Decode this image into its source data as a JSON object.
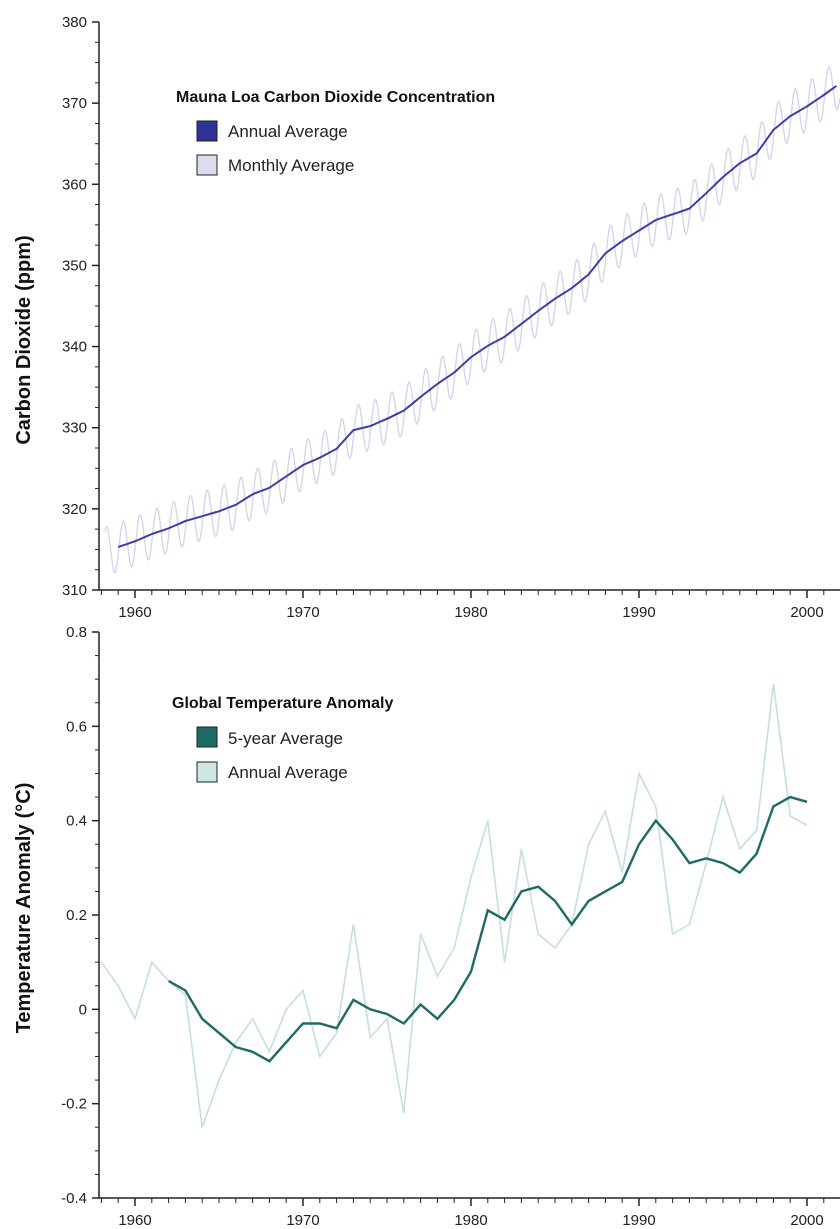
{
  "chart_data": [
    {
      "type": "line",
      "title": "Mauna Loa Carbon Dioxide Concentration",
      "ylabel": "Carbon Dioxide",
      "yunit": "(ppm)",
      "xlim": [
        1958,
        2002
      ],
      "ylim": [
        310,
        380
      ],
      "yticks": [
        "310",
        "320",
        "330",
        "340",
        "350",
        "360",
        "370",
        "380"
      ],
      "xticks": [
        "1960",
        "1970",
        "1980",
        "1990",
        "2000"
      ],
      "grid": false,
      "legend_position": "top-left",
      "colors": {
        "Annual Average": "#3d3fa8",
        "Monthly Average": "#d4d5ee"
      },
      "series": [
        {
          "name": "Annual Average",
          "x": [
            1959,
            1960,
            1961,
            1962,
            1963,
            1964,
            1965,
            1966,
            1967,
            1968,
            1969,
            1970,
            1971,
            1972,
            1973,
            1974,
            1975,
            1976,
            1977,
            1978,
            1979,
            1980,
            1981,
            1982,
            1983,
            1984,
            1985,
            1986,
            1987,
            1988,
            1989,
            1990,
            1991,
            1992,
            1993,
            1994,
            1995,
            1996,
            1997,
            1998,
            1999,
            2000,
            2001,
            2002
          ],
          "values": [
            315.3,
            316.0,
            316.9,
            317.6,
            318.5,
            319.1,
            319.7,
            320.5,
            321.8,
            322.6,
            324.0,
            325.4,
            326.3,
            327.4,
            329.7,
            330.2,
            331.1,
            332.1,
            333.8,
            335.4,
            336.8,
            338.7,
            340.1,
            341.2,
            342.8,
            344.4,
            345.9,
            347.2,
            348.9,
            351.5,
            353.0,
            354.3,
            355.6,
            356.3,
            357.0,
            358.9,
            360.9,
            362.6,
            363.8,
            366.7,
            368.4,
            369.6,
            371.0,
            372.5
          ]
        },
        {
          "name": "Monthly Average",
          "seasonal_amplitude_ppm": 3.0,
          "note_values": "monthly values oscillate around the annual average"
        }
      ]
    },
    {
      "type": "line",
      "title": "Global Temperature Anomaly",
      "ylabel": "Temperature Anomaly",
      "yunit": "(°C)",
      "xlim": [
        1958,
        2002
      ],
      "ylim": [
        -0.4,
        0.8
      ],
      "yticks": [
        "-0.4",
        "-0.2",
        "0",
        "0.2",
        "0.4",
        "0.6",
        "0.8"
      ],
      "xticks": [
        "1960",
        "1970",
        "1980",
        "1990",
        "2000"
      ],
      "grid": false,
      "legend_position": "top-left",
      "colors": {
        "5-year Average": "#1e6b66",
        "Annual Average": "#c3e0de"
      },
      "series": [
        {
          "name": "5-year Average",
          "x": [
            1962,
            1963,
            1964,
            1965,
            1966,
            1967,
            1968,
            1969,
            1970,
            1971,
            1972,
            1973,
            1974,
            1975,
            1976,
            1977,
            1978,
            1979,
            1980,
            1981,
            1982,
            1983,
            1984,
            1985,
            1986,
            1987,
            1988,
            1989,
            1990,
            1991,
            1992,
            1993,
            1994,
            1995,
            1996,
            1997,
            1998,
            1999,
            2000
          ],
          "values": [
            0.06,
            0.04,
            -0.02,
            -0.05,
            -0.08,
            -0.09,
            -0.11,
            -0.07,
            -0.03,
            -0.03,
            -0.04,
            0.02,
            0.0,
            -0.01,
            -0.03,
            0.01,
            -0.02,
            0.02,
            0.08,
            0.21,
            0.19,
            0.25,
            0.26,
            0.23,
            0.18,
            0.23,
            0.25,
            0.27,
            0.35,
            0.4,
            0.36,
            0.31,
            0.32,
            0.31,
            0.29,
            0.33,
            0.43,
            0.45,
            0.44
          ]
        },
        {
          "name": "Annual Average",
          "x": [
            1958,
            1959,
            1960,
            1961,
            1962,
            1963,
            1964,
            1965,
            1966,
            1967,
            1968,
            1969,
            1970,
            1971,
            1972,
            1973,
            1974,
            1975,
            1976,
            1977,
            1978,
            1979,
            1980,
            1981,
            1982,
            1983,
            1984,
            1985,
            1986,
            1987,
            1988,
            1989,
            1990,
            1991,
            1992,
            1993,
            1994,
            1995,
            1996,
            1997,
            1998,
            1999,
            2000
          ],
          "values": [
            0.1,
            0.05,
            -0.02,
            0.1,
            0.06,
            0.03,
            -0.25,
            -0.15,
            -0.07,
            -0.02,
            -0.09,
            0.0,
            0.04,
            -0.1,
            -0.05,
            0.18,
            -0.06,
            -0.02,
            -0.22,
            0.16,
            0.07,
            0.13,
            0.28,
            0.4,
            0.1,
            0.34,
            0.16,
            0.13,
            0.18,
            0.35,
            0.42,
            0.29,
            0.5,
            0.43,
            0.16,
            0.18,
            0.31,
            0.45,
            0.34,
            0.38,
            0.69,
            0.41,
            0.39
          ]
        }
      ]
    }
  ]
}
